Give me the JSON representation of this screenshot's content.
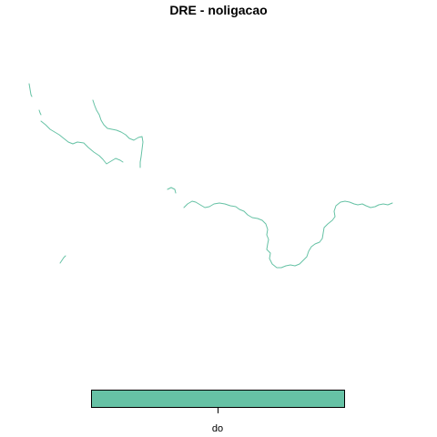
{
  "title": "DRE - noligacao",
  "colors": {
    "river": "#66c2a5",
    "legend_fill": "#66c2a5",
    "frame": "#000000",
    "background": "#ffffff"
  },
  "legend": {
    "label": "do"
  }
}
